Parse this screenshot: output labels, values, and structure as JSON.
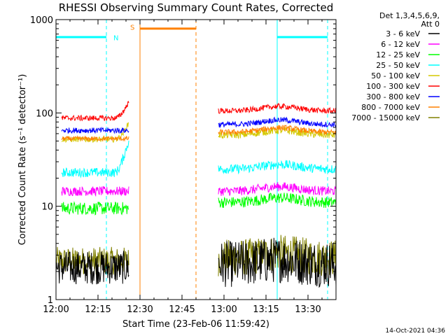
{
  "chart_data": {
    "type": "line",
    "title": "RHESSI Observing Summary Count Rates, Corrected",
    "xlabel": "Start Time (23-Feb-06 11:59:42)",
    "ylabel": "Corrected Count Rate (s⁻¹ detector⁻¹)",
    "yscale": "log",
    "ylim": [
      1,
      1000
    ],
    "xlim": [
      "12:00",
      "13:40"
    ],
    "x_ticks": [
      "12:00",
      "12:15",
      "12:30",
      "12:45",
      "13:00",
      "13:15",
      "13:30"
    ],
    "y_ticks": [
      "1",
      "10",
      "100",
      "1000"
    ],
    "grid": false,
    "legend": {
      "position": "right",
      "header": [
        "Det 1,3,4,5,6,9,",
        "Att 0"
      ],
      "entries": [
        {
          "label": "3 - 6 keV",
          "color": "#000000"
        },
        {
          "label": "6 - 12 keV",
          "color": "#ff00ff"
        },
        {
          "label": "12 - 25 keV",
          "color": "#00ff00"
        },
        {
          "label": "25 - 50 keV",
          "color": "#00ffff"
        },
        {
          "label": "50 - 100 keV",
          "color": "#d4c800"
        },
        {
          "label": "100 - 300 keV",
          "color": "#ff0000"
        },
        {
          "label": "300 - 800 keV",
          "color": "#0000ff"
        },
        {
          "label": "800 - 7000 keV",
          "color": "#ff8000"
        },
        {
          "label": "7000 - 15000 keV",
          "color": "#808000"
        }
      ]
    },
    "annotations": [
      {
        "text": "N",
        "color": "#00ffff"
      },
      {
        "text": "S",
        "color": "#ff8000"
      }
    ],
    "series": [
      {
        "name": "3 - 6 keV",
        "color": "#000000",
        "segments": [
          {
            "t": [
              0,
              26
            ],
            "level": 2.2,
            "noise": 0.18
          },
          {
            "t": [
              58,
              100
            ],
            "level": 2.4,
            "noise": 0.25
          }
        ]
      },
      {
        "name": "6 - 12 keV",
        "color": "#ff00ff",
        "segments": [
          {
            "t": [
              2,
              26
            ],
            "level": 14.5,
            "noise": 0.05
          },
          {
            "t": [
              58,
              100
            ],
            "level": 14.5,
            "noise": 0.05
          }
        ]
      },
      {
        "name": "12 - 25 keV",
        "color": "#00ff00",
        "segments": [
          {
            "t": [
              2,
              26
            ],
            "level": 9.5,
            "noise": 0.07
          },
          {
            "t": [
              58,
              100
            ],
            "level": 11,
            "noise": 0.06
          }
        ]
      },
      {
        "name": "25 - 50 keV",
        "color": "#00ffff",
        "segments": [
          {
            "t": [
              2,
              26
            ],
            "level": 23,
            "noise": 0.05
          },
          {
            "t": [
              58,
              100
            ],
            "level": 25,
            "noise": 0.05
          }
        ]
      },
      {
        "name": "50 - 100 keV",
        "color": "#d4c800",
        "segments": [
          {
            "t": [
              2,
              26
            ],
            "level": 52,
            "noise": 0.03
          },
          {
            "t": [
              58,
              100
            ],
            "level": 58,
            "noise": 0.04
          }
        ]
      },
      {
        "name": "100 - 300 keV",
        "color": "#ff0000",
        "segments": [
          {
            "t": [
              2,
              26
            ],
            "level": 88,
            "noise": 0.03
          },
          {
            "t": [
              58,
              100
            ],
            "level": 105,
            "noise": 0.03
          }
        ]
      },
      {
        "name": "300 - 800 keV",
        "color": "#0000ff",
        "segments": [
          {
            "t": [
              2,
              26
            ],
            "level": 65,
            "noise": 0.03
          },
          {
            "t": [
              58,
              100
            ],
            "level": 75,
            "noise": 0.03
          }
        ]
      },
      {
        "name": "800 - 7000 keV",
        "color": "#ff8000",
        "segments": [
          {
            "t": [
              2,
              26
            ],
            "level": 53,
            "noise": 0.025
          },
          {
            "t": [
              58,
              100
            ],
            "level": 62,
            "noise": 0.03
          }
        ]
      },
      {
        "name": "7000 - 15000 keV",
        "color": "#808000",
        "segments": [
          {
            "t": [
              0,
              26
            ],
            "level": 2.6,
            "noise": 0.15
          },
          {
            "t": [
              58,
              100
            ],
            "level": 2.8,
            "noise": 0.2
          }
        ]
      }
    ],
    "flags": {
      "night_cyan_level": 650,
      "saa_orange_level": 800
    },
    "event_lines": [
      {
        "t": 0,
        "color": "#00ffff",
        "style": "solid"
      },
      {
        "t": 18,
        "color": "#00ffff",
        "style": "dashed"
      },
      {
        "t": 30,
        "color": "#ff8000",
        "style": "solid"
      },
      {
        "t": 50,
        "color": "#ff8000",
        "style": "dashed"
      },
      {
        "t": 79,
        "color": "#00ffff",
        "style": "solid"
      },
      {
        "t": 97,
        "color": "#00ffff",
        "style": "dashed"
      }
    ]
  },
  "footer": {
    "timestamp": "14-Oct-2021 04:36"
  }
}
